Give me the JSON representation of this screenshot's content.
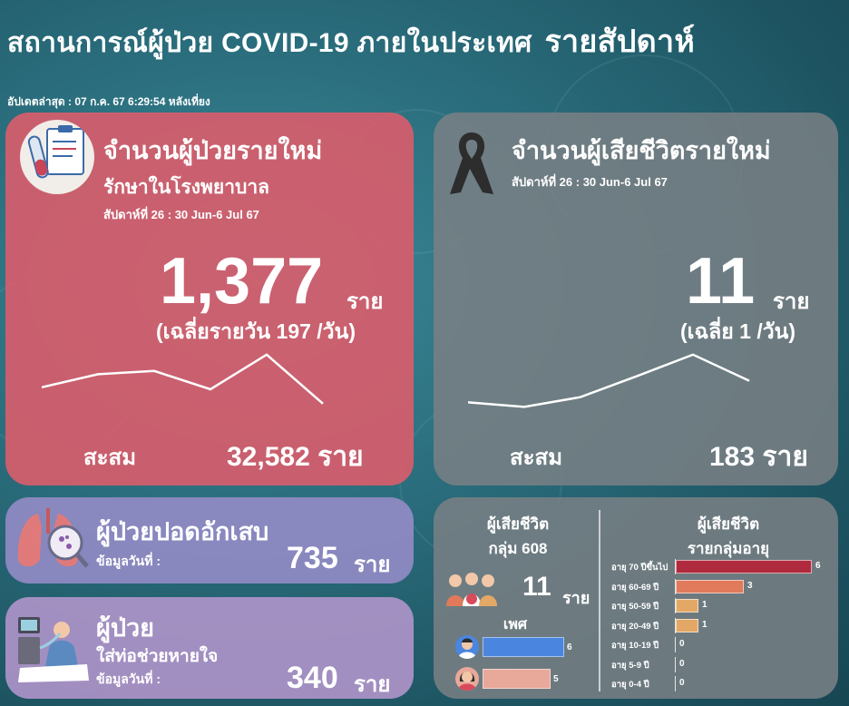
{
  "header": {
    "title": "สถานการณ์ผู้ป่วย COVID-19 ภายในประเทศ",
    "title_suffix": "รายสัปดาห์",
    "updated": "อัปเดตล่าสุด :  07 ก.ค. 67 6:29:54 หลังเที่ยง"
  },
  "new_cases": {
    "title": "จำนวนผู้ป่วยรายใหม่",
    "subtitle": "รักษาในโรงพยาบาล",
    "week": "สัปดาห์ที่ 26 : 30 Jun-6 Jul 67",
    "value": "1,377",
    "unit": "ราย",
    "average": "(เฉลี่ยรายวัน 197 /วัน)",
    "cumulative_label": "สะสม",
    "cumulative_value": "32,582 ราย",
    "trend": [
      0.35,
      0.55,
      0.6,
      0.32,
      0.85,
      0.1
    ]
  },
  "deaths": {
    "title": "จำนวนผู้เสียชีวิตรายใหม่",
    "week": "สัปดาห์ที่ 26 : 30 Jun-6 Jul 67",
    "value": "11",
    "unit": "ราย",
    "average": "(เฉลี่ย 1 /วัน)",
    "cumulative_label": "สะสม",
    "cumulative_value": "183 ราย",
    "trend": [
      0.12,
      0.05,
      0.2,
      0.52,
      0.85,
      0.45
    ]
  },
  "pneumonia": {
    "title": "ผู้ป่วยปอดอักเสบ",
    "date_label": "ข้อมูลวันที่ :",
    "value": "735",
    "unit": "ราย"
  },
  "ventilator": {
    "title": "ผู้ป่วย",
    "subtitle": "ใส่ท่อช่วยหายใจ",
    "date_label": "ข้อมูลวันที่ :",
    "value": "340",
    "unit": "ราย"
  },
  "group_608": {
    "title_line1": "ผู้เสียชีวิต",
    "title_line2": "กลุ่ม 608",
    "value": "11",
    "unit": "ราย",
    "gender_title": "เพศ",
    "male": 6,
    "female": 5,
    "male_color": "#4a86e0",
    "female_color": "#e8a89a"
  },
  "age_groups": {
    "title_line1": "ผู้เสียชีวิต",
    "title_line2": "รายกลุ่มอายุ",
    "rows": [
      {
        "label": "อายุ 70 ปีขึ้นไป",
        "value": 6,
        "color": "#b02a3e"
      },
      {
        "label": "อายุ 60-69 ปี",
        "value": 3,
        "color": "#e07a5a"
      },
      {
        "label": "อายุ 50-59 ปี",
        "value": 1,
        "color": "#e3a866"
      },
      {
        "label": "อายุ 20-49 ปี",
        "value": 1,
        "color": "#e3a866"
      },
      {
        "label": "อายุ 10-19 ปี",
        "value": 0,
        "color": "#e3a866"
      },
      {
        "label": "อายุ 5-9 ปี",
        "value": 0,
        "color": "#e3a866"
      },
      {
        "label": "อายุ 0-4 ปี",
        "value": 0,
        "color": "#e3a866"
      }
    ]
  }
}
